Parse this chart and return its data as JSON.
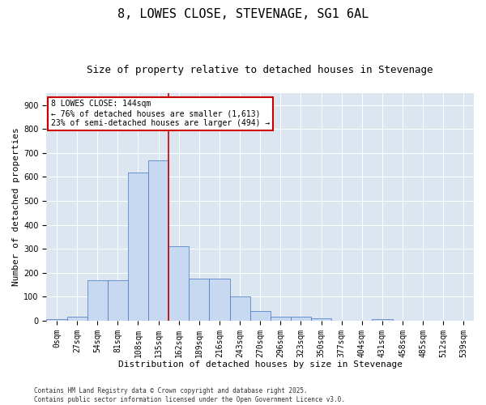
{
  "title": "8, LOWES CLOSE, STEVENAGE, SG1 6AL",
  "subtitle": "Size of property relative to detached houses in Stevenage",
  "xlabel": "Distribution of detached houses by size in Stevenage",
  "ylabel": "Number of detached properties",
  "bar_labels": [
    "0sqm",
    "27sqm",
    "54sqm",
    "81sqm",
    "108sqm",
    "135sqm",
    "162sqm",
    "189sqm",
    "216sqm",
    "243sqm",
    "270sqm",
    "296sqm",
    "323sqm",
    "350sqm",
    "377sqm",
    "404sqm",
    "431sqm",
    "458sqm",
    "485sqm",
    "512sqm",
    "539sqm"
  ],
  "bar_values": [
    5,
    15,
    170,
    170,
    620,
    670,
    310,
    175,
    175,
    100,
    40,
    15,
    15,
    10,
    0,
    0,
    5,
    0,
    0,
    0,
    0
  ],
  "bar_color": "#c6d9f1",
  "bar_edge_color": "#4472c4",
  "vline_x_idx": 5,
  "vline_color": "#cc0000",
  "annotation_text": "8 LOWES CLOSE: 144sqm\n← 76% of detached houses are smaller (1,613)\n23% of semi-detached houses are larger (494) →",
  "annotation_box_color": "#ffffff",
  "annotation_box_edge": "#cc0000",
  "ylim": [
    0,
    950
  ],
  "yticks": [
    0,
    100,
    200,
    300,
    400,
    500,
    600,
    700,
    800,
    900
  ],
  "footnote": "Contains HM Land Registry data © Crown copyright and database right 2025.\nContains public sector information licensed under the Open Government Licence v3.0.",
  "bg_color": "#dce6f1",
  "fig_bg_color": "#ffffff",
  "title_fontsize": 11,
  "subtitle_fontsize": 9,
  "tick_fontsize": 7,
  "label_fontsize": 8,
  "annot_fontsize": 7,
  "footnote_fontsize": 5.5
}
